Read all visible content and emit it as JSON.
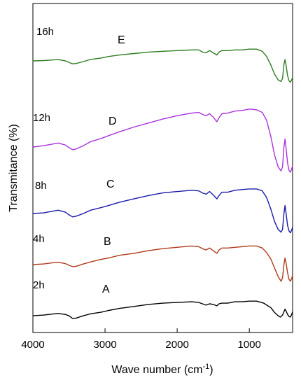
{
  "chart_data": {
    "type": "line",
    "title": "",
    "xlabel": "Wave number (cm",
    "xlabel_sup": "-1",
    "xlabel_close": ")",
    "ylabel": "Transmitance (%)",
    "xlim": [
      4000,
      400
    ],
    "x_reversed": true,
    "xticks": [
      {
        "value": 4000,
        "label": "4000"
      },
      {
        "value": 3000,
        "label": "3000"
      },
      {
        "value": 2000,
        "label": "2000"
      },
      {
        "value": 1000,
        "label": "1000"
      }
    ],
    "y_ticks_shown": false,
    "grid": false,
    "legend": "none",
    "series": [
      {
        "name": "A",
        "time_label": "2h",
        "color": "#000000",
        "points": [
          [
            4000,
            0.02
          ],
          [
            3850,
            0.03
          ],
          [
            3700,
            0.05
          ],
          [
            3650,
            0.055
          ],
          [
            3550,
            0.04
          ],
          [
            3500,
            0.02
          ],
          [
            3450,
            -0.02
          ],
          [
            3400,
            -0.015
          ],
          [
            3300,
            0.02
          ],
          [
            3200,
            0.05
          ],
          [
            3050,
            0.075
          ],
          [
            2950,
            0.1
          ],
          [
            2800,
            0.13
          ],
          [
            2600,
            0.16
          ],
          [
            2400,
            0.19
          ],
          [
            2200,
            0.21
          ],
          [
            2000,
            0.22
          ],
          [
            1800,
            0.23
          ],
          [
            1700,
            0.22
          ],
          [
            1650,
            0.2
          ],
          [
            1600,
            0.18
          ],
          [
            1550,
            0.2
          ],
          [
            1500,
            0.19
          ],
          [
            1450,
            0.17
          ],
          [
            1420,
            0.2
          ],
          [
            1380,
            0.21
          ],
          [
            1300,
            0.21
          ],
          [
            1200,
            0.23
          ],
          [
            1100,
            0.23
          ],
          [
            1000,
            0.24
          ],
          [
            900,
            0.24
          ],
          [
            800,
            0.21
          ],
          [
            700,
            0.14
          ],
          [
            650,
            0.07
          ],
          [
            600,
            0.02
          ],
          [
            570,
            0.0
          ],
          [
            540,
            0.03
          ],
          [
            520,
            0.08
          ],
          [
            505,
            0.12
          ],
          [
            490,
            0.09
          ],
          [
            470,
            0.04
          ],
          [
            450,
            0.01
          ],
          [
            430,
            0.0
          ],
          [
            410,
            0.05
          ],
          [
            400,
            0.08
          ]
        ]
      },
      {
        "name": "B",
        "time_label": "4h",
        "color": "#b03a1a",
        "points": [
          [
            4000,
            0.0
          ],
          [
            3850,
            0.01
          ],
          [
            3700,
            0.03
          ],
          [
            3650,
            0.035
          ],
          [
            3550,
            0.015
          ],
          [
            3500,
            -0.01
          ],
          [
            3450,
            -0.03
          ],
          [
            3400,
            -0.025
          ],
          [
            3300,
            0.01
          ],
          [
            3200,
            0.04
          ],
          [
            3050,
            0.08
          ],
          [
            2950,
            0.1
          ],
          [
            2800,
            0.14
          ],
          [
            2600,
            0.17
          ],
          [
            2400,
            0.21
          ],
          [
            2200,
            0.24
          ],
          [
            2000,
            0.26
          ],
          [
            1800,
            0.28
          ],
          [
            1700,
            0.27
          ],
          [
            1650,
            0.24
          ],
          [
            1600,
            0.22
          ],
          [
            1550,
            0.25
          ],
          [
            1500,
            0.21
          ],
          [
            1450,
            0.17
          ],
          [
            1420,
            0.22
          ],
          [
            1380,
            0.25
          ],
          [
            1300,
            0.25
          ],
          [
            1200,
            0.26
          ],
          [
            1100,
            0.27
          ],
          [
            1000,
            0.28
          ],
          [
            900,
            0.28
          ],
          [
            820,
            0.25
          ],
          [
            760,
            0.18
          ],
          [
            700,
            0.08
          ],
          [
            650,
            -0.05
          ],
          [
            600,
            -0.18
          ],
          [
            560,
            -0.25
          ],
          [
            540,
            -0.2
          ],
          [
            520,
            0.0
          ],
          [
            505,
            0.1
          ],
          [
            490,
            0.02
          ],
          [
            470,
            -0.12
          ],
          [
            450,
            -0.22
          ],
          [
            430,
            -0.25
          ],
          [
            410,
            -0.2
          ],
          [
            400,
            -0.15
          ]
        ]
      },
      {
        "name": "C",
        "time_label": "8h",
        "color": "#1a1aaa",
        "points": [
          [
            4000,
            0.0
          ],
          [
            3850,
            0.01
          ],
          [
            3700,
            0.04
          ],
          [
            3650,
            0.05
          ],
          [
            3550,
            0.02
          ],
          [
            3500,
            -0.02
          ],
          [
            3450,
            -0.05
          ],
          [
            3400,
            -0.04
          ],
          [
            3300,
            0.0
          ],
          [
            3200,
            0.05
          ],
          [
            3050,
            0.09
          ],
          [
            2950,
            0.12
          ],
          [
            2800,
            0.17
          ],
          [
            2600,
            0.22
          ],
          [
            2400,
            0.27
          ],
          [
            2200,
            0.31
          ],
          [
            2000,
            0.33
          ],
          [
            1800,
            0.35
          ],
          [
            1700,
            0.34
          ],
          [
            1650,
            0.31
          ],
          [
            1600,
            0.29
          ],
          [
            1550,
            0.33
          ],
          [
            1500,
            0.28
          ],
          [
            1450,
            0.22
          ],
          [
            1420,
            0.27
          ],
          [
            1380,
            0.32
          ],
          [
            1300,
            0.32
          ],
          [
            1200,
            0.35
          ],
          [
            1100,
            0.36
          ],
          [
            1000,
            0.37
          ],
          [
            900,
            0.37
          ],
          [
            820,
            0.34
          ],
          [
            760,
            0.24
          ],
          [
            700,
            0.06
          ],
          [
            650,
            -0.12
          ],
          [
            600,
            -0.24
          ],
          [
            560,
            -0.28
          ],
          [
            540,
            -0.24
          ],
          [
            520,
            0.0
          ],
          [
            505,
            0.12
          ],
          [
            490,
            0.0
          ],
          [
            470,
            -0.18
          ],
          [
            450,
            -0.26
          ],
          [
            430,
            -0.29
          ],
          [
            410,
            -0.24
          ],
          [
            400,
            -0.2
          ]
        ]
      },
      {
        "name": "D",
        "time_label": "12h",
        "color": "#aa33dd",
        "points": [
          [
            4000,
            0.0
          ],
          [
            3850,
            0.02
          ],
          [
            3700,
            0.05
          ],
          [
            3650,
            0.06
          ],
          [
            3550,
            0.03
          ],
          [
            3500,
            -0.01
          ],
          [
            3450,
            -0.04
          ],
          [
            3400,
            -0.03
          ],
          [
            3300,
            0.02
          ],
          [
            3200,
            0.08
          ],
          [
            3050,
            0.13
          ],
          [
            2950,
            0.17
          ],
          [
            2800,
            0.23
          ],
          [
            2600,
            0.3
          ],
          [
            2400,
            0.36
          ],
          [
            2200,
            0.42
          ],
          [
            2000,
            0.47
          ],
          [
            1800,
            0.51
          ],
          [
            1700,
            0.52
          ],
          [
            1650,
            0.49
          ],
          [
            1600,
            0.47
          ],
          [
            1550,
            0.5
          ],
          [
            1500,
            0.45
          ],
          [
            1450,
            0.38
          ],
          [
            1420,
            0.44
          ],
          [
            1380,
            0.5
          ],
          [
            1300,
            0.51
          ],
          [
            1200,
            0.54
          ],
          [
            1100,
            0.55
          ],
          [
            1000,
            0.57
          ],
          [
            900,
            0.56
          ],
          [
            820,
            0.52
          ],
          [
            760,
            0.4
          ],
          [
            700,
            0.15
          ],
          [
            650,
            -0.12
          ],
          [
            600,
            -0.3
          ],
          [
            560,
            -0.36
          ],
          [
            540,
            -0.3
          ],
          [
            520,
            0.0
          ],
          [
            505,
            0.12
          ],
          [
            490,
            -0.02
          ],
          [
            470,
            -0.24
          ],
          [
            450,
            -0.35
          ],
          [
            430,
            -0.38
          ],
          [
            410,
            -0.32
          ],
          [
            400,
            -0.28
          ]
        ]
      },
      {
        "name": "E",
        "time_label": "16h",
        "color": "#2e7d20",
        "points": [
          [
            4000,
            0.0
          ],
          [
            3850,
            0.005
          ],
          [
            3700,
            0.015
          ],
          [
            3650,
            0.018
          ],
          [
            3550,
            0.0
          ],
          [
            3500,
            -0.02
          ],
          [
            3450,
            -0.04
          ],
          [
            3400,
            -0.035
          ],
          [
            3300,
            -0.01
          ],
          [
            3200,
            0.02
          ],
          [
            3050,
            0.04
          ],
          [
            2950,
            0.06
          ],
          [
            2800,
            0.08
          ],
          [
            2600,
            0.1
          ],
          [
            2400,
            0.12
          ],
          [
            2200,
            0.13
          ],
          [
            2000,
            0.14
          ],
          [
            1800,
            0.15
          ],
          [
            1700,
            0.15
          ],
          [
            1650,
            0.12
          ],
          [
            1600,
            0.11
          ],
          [
            1550,
            0.14
          ],
          [
            1500,
            0.11
          ],
          [
            1450,
            0.08
          ],
          [
            1420,
            0.12
          ],
          [
            1380,
            0.14
          ],
          [
            1300,
            0.14
          ],
          [
            1200,
            0.15
          ],
          [
            1100,
            0.15
          ],
          [
            1000,
            0.16
          ],
          [
            900,
            0.16
          ],
          [
            820,
            0.13
          ],
          [
            760,
            0.06
          ],
          [
            700,
            -0.06
          ],
          [
            650,
            -0.18
          ],
          [
            600,
            -0.26
          ],
          [
            560,
            -0.28
          ],
          [
            540,
            -0.24
          ],
          [
            520,
            -0.05
          ],
          [
            505,
            0.02
          ],
          [
            490,
            -0.06
          ],
          [
            470,
            -0.2
          ],
          [
            450,
            -0.27
          ],
          [
            430,
            -0.29
          ],
          [
            410,
            -0.25
          ],
          [
            400,
            -0.22
          ]
        ]
      }
    ]
  }
}
